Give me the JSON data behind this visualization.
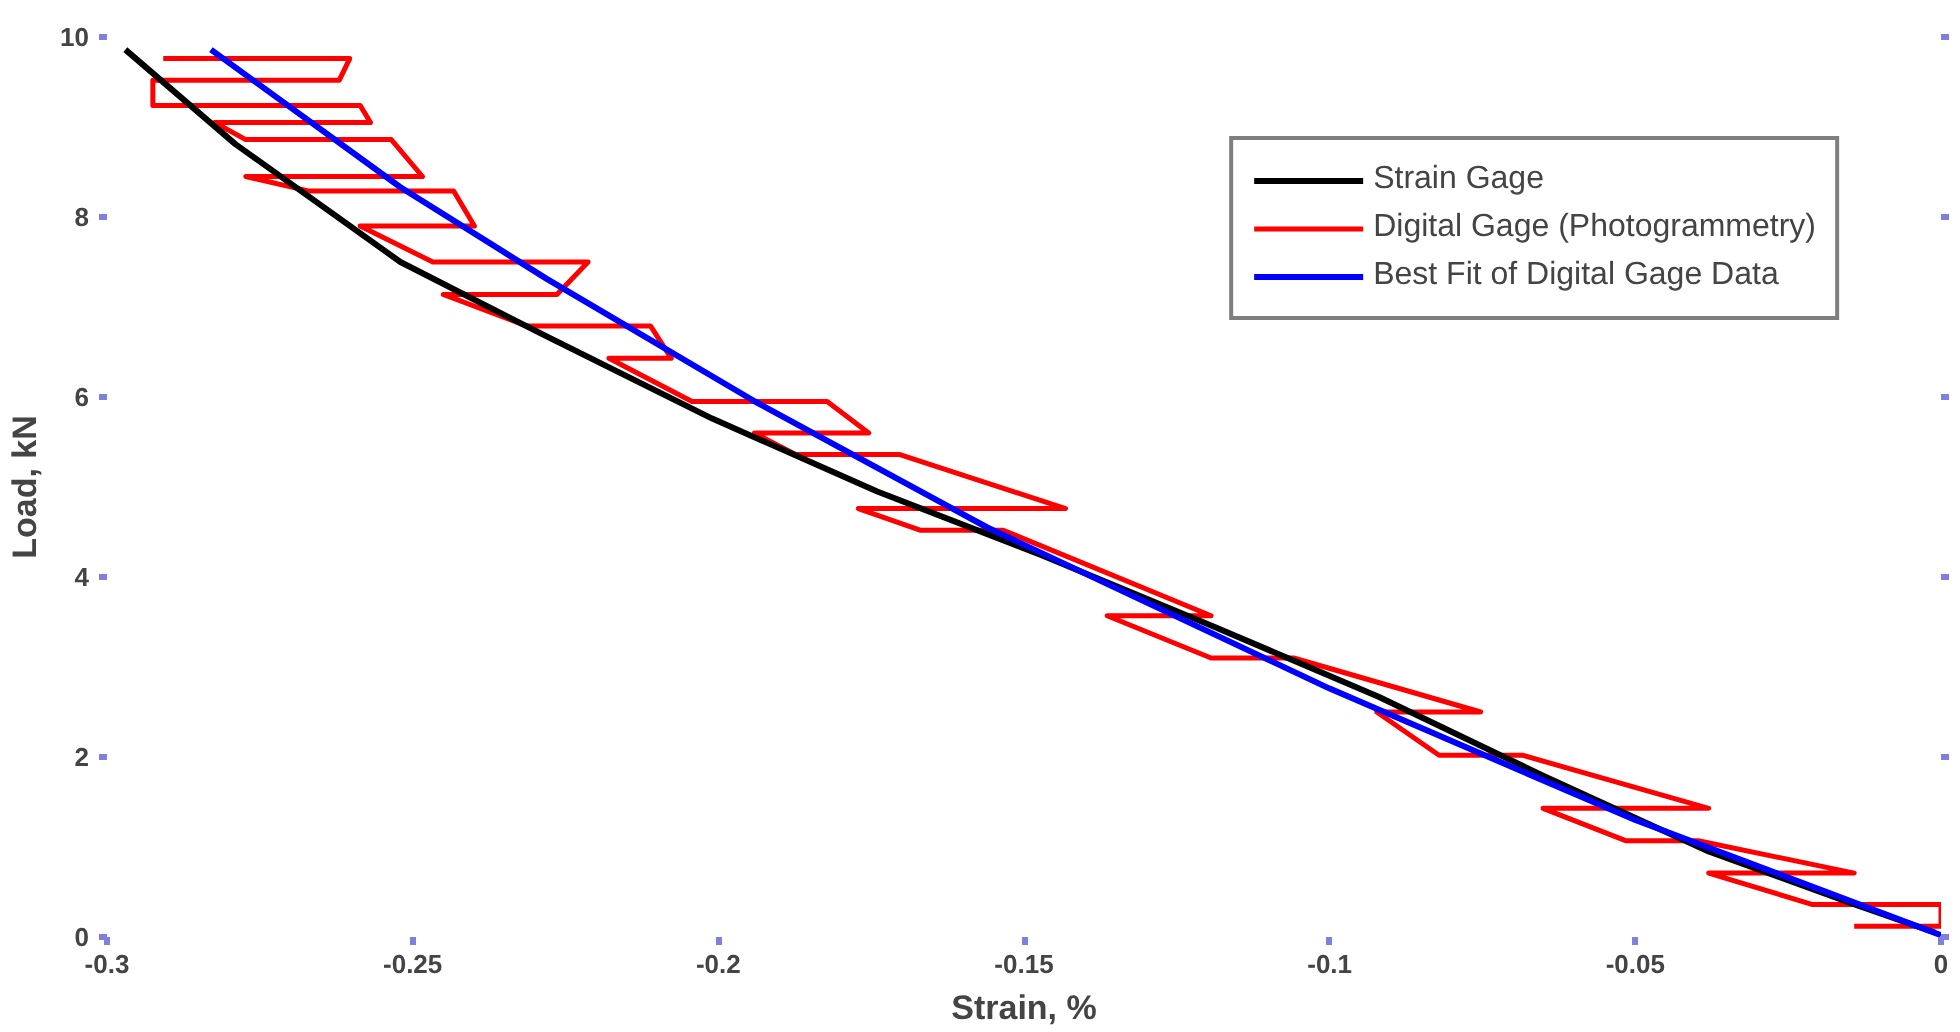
{
  "chart_data": {
    "type": "line",
    "xlabel": "Strain, %",
    "ylabel": "Load, kN",
    "xlim": [
      -0.3,
      0
    ],
    "ylim": [
      0,
      10
    ],
    "xticks": [
      -0.3,
      -0.25,
      -0.2,
      -0.15,
      -0.1,
      -0.05,
      0
    ],
    "yticks": [
      0,
      2,
      4,
      6,
      8,
      10
    ],
    "grid": false,
    "legend": "top right",
    "marker": "none",
    "line_style": "solid",
    "series": [
      {
        "name": "Digital Gage (Photogrammetry)",
        "color": "#ff0000",
        "x": [
          -0.2908,
          -0.2603,
          -0.262,
          -0.2925,
          -0.2925,
          -0.2586,
          -0.2569,
          -0.2824,
          -0.2773,
          -0.2535,
          -0.2484,
          -0.2773,
          -0.2671,
          -0.2433,
          -0.2399,
          -0.2586,
          -0.2467,
          -0.2213,
          -0.2264,
          -0.245,
          -0.2314,
          -0.2111,
          -0.2077,
          -0.2179,
          -0.2043,
          -0.1822,
          -0.1754,
          -0.1941,
          -0.1873,
          -0.1703,
          -0.1432,
          -0.1771,
          -0.167,
          -0.1534,
          -0.1194,
          -0.1364,
          -0.1194,
          -0.1059,
          -0.0753,
          -0.0923,
          -0.0821,
          -0.0685,
          -0.038,
          -0.0651,
          -0.0516,
          -0.0397,
          -0.0142,
          -0.038,
          -0.021,
          0,
          0,
          -0.0142
        ],
        "values": [
          9.76,
          9.76,
          9.52,
          9.52,
          9.24,
          9.24,
          9.05,
          9.05,
          8.86,
          8.86,
          8.45,
          8.45,
          8.29,
          8.29,
          7.9,
          7.9,
          7.5,
          7.5,
          7.14,
          7.14,
          6.79,
          6.79,
          6.43,
          6.43,
          5.95,
          5.95,
          5.6,
          5.6,
          5.36,
          5.36,
          4.76,
          4.76,
          4.52,
          4.52,
          3.57,
          3.57,
          3.1,
          3.1,
          2.5,
          2.5,
          2.02,
          2.02,
          1.43,
          1.43,
          1.07,
          1.07,
          0.71,
          0.71,
          0.36,
          0.36,
          0.12,
          0.12
        ]
      },
      {
        "name": "Strain Gage",
        "color": "#000000",
        "x": [
          -0.297,
          -0.279,
          -0.252,
          -0.228,
          -0.201,
          -0.174,
          -0.147,
          -0.119,
          -0.092,
          -0.065,
          -0.038,
          -0.014,
          -0.001
        ],
        "values": [
          9.86,
          8.81,
          7.5,
          6.67,
          5.76,
          4.95,
          4.24,
          3.45,
          2.67,
          1.79,
          0.95,
          0.36,
          0.05
        ]
      },
      {
        "name": "Best Fit of Digital Gage Data",
        "color": "#0000ff",
        "x": [
          -0.283,
          -0.252,
          -0.228,
          -0.194,
          -0.156,
          -0.1,
          -0.05,
          0
        ],
        "values": [
          9.86,
          8.33,
          7.31,
          5.95,
          4.55,
          2.76,
          1.3,
          0.02
        ]
      }
    ]
  }
}
